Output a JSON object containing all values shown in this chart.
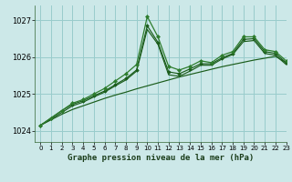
{
  "title": "Graphe pression niveau de la mer (hPa)",
  "bg_color": "#cce8e8",
  "grid_color": "#99cccc",
  "line_color_dark": "#1a5c1a",
  "line_color_med": "#2e7d2e",
  "xlim": [
    -0.5,
    23
  ],
  "ylim": [
    1023.7,
    1027.4
  ],
  "yticks": [
    1024,
    1025,
    1026,
    1027
  ],
  "xticks": [
    0,
    1,
    2,
    3,
    4,
    5,
    6,
    7,
    8,
    9,
    10,
    11,
    12,
    13,
    14,
    15,
    16,
    17,
    18,
    19,
    20,
    21,
    22,
    23
  ],
  "series_straight": [
    1024.15,
    1024.3,
    1024.45,
    1024.58,
    1024.68,
    1024.78,
    1024.88,
    1024.97,
    1025.05,
    1025.14,
    1025.22,
    1025.3,
    1025.38,
    1025.46,
    1025.53,
    1025.6,
    1025.67,
    1025.74,
    1025.8,
    1025.86,
    1025.92,
    1025.97,
    1026.02,
    1025.85
  ],
  "series_jagged": [
    1024.15,
    1024.35,
    1024.55,
    1024.75,
    1024.85,
    1025.0,
    1025.15,
    1025.35,
    1025.55,
    1025.8,
    1027.1,
    1026.55,
    1025.75,
    1025.65,
    1025.75,
    1025.9,
    1025.85,
    1026.05,
    1026.15,
    1026.55,
    1026.55,
    1026.2,
    1026.15,
    1025.9
  ],
  "series_close1": [
    1024.15,
    1024.35,
    1024.55,
    1024.72,
    1024.82,
    1024.95,
    1025.08,
    1025.25,
    1025.42,
    1025.65,
    1026.85,
    1026.4,
    1025.6,
    1025.55,
    1025.68,
    1025.82,
    1025.82,
    1025.98,
    1026.1,
    1026.48,
    1026.5,
    1026.15,
    1026.1,
    1025.85
  ],
  "series_close2": [
    1024.15,
    1024.32,
    1024.5,
    1024.68,
    1024.78,
    1024.92,
    1025.05,
    1025.22,
    1025.38,
    1025.62,
    1026.75,
    1026.35,
    1025.52,
    1025.48,
    1025.62,
    1025.78,
    1025.78,
    1025.95,
    1026.07,
    1026.42,
    1026.45,
    1026.1,
    1026.05,
    1025.8
  ]
}
